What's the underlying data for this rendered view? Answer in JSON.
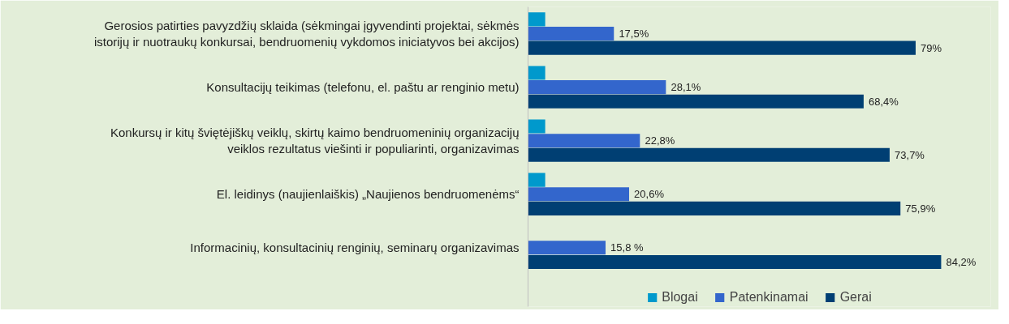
{
  "chart_data": {
    "type": "bar",
    "orientation": "horizontal",
    "categories": [
      "Gerosios patirties pavyzdžių sklaida (sėkmingai įgyvendinti projektai, sėkmės istorijų ir nuotraukų konkursai, bendruomenių vykdomos iniciatyvos bei akcijos)",
      "Konsultacijų teikimas (telefonu, el. paštu ar renginio metu)",
      "Konkursų ir kitų šviętėjiškų veiklų, skirtų kaimo bendruomeninių organizacijų veiklos rezultatus viešinti ir populiarinti, organizavimas",
      "El. leidinys (naujienlaiškis) „Naujienos bendruomenėms“",
      "Informacinių, konsultacinių renginių, seminarų organizavimas"
    ],
    "series": [
      {
        "name": "Blogai",
        "color": "#0099cc",
        "values": [
          3.5,
          3.5,
          3.5,
          3.5,
          0
        ],
        "value_labels": [
          null,
          null,
          null,
          null,
          null
        ]
      },
      {
        "name": "Patenkinamai",
        "color": "#3366cc",
        "values": [
          17.5,
          28.1,
          22.8,
          20.6,
          15.8
        ],
        "value_labels": [
          "17,5%",
          "28,1%",
          "22,8%",
          "20,6%",
          "15,8 %"
        ]
      },
      {
        "name": "Gerai",
        "color": "#003f73",
        "values": [
          79,
          68.4,
          73.7,
          75.9,
          84.2
        ],
        "value_labels": [
          "79%",
          "68,4%",
          "73,7%",
          "75,9%",
          "84,2%"
        ]
      }
    ],
    "legend": "bottom"
  }
}
